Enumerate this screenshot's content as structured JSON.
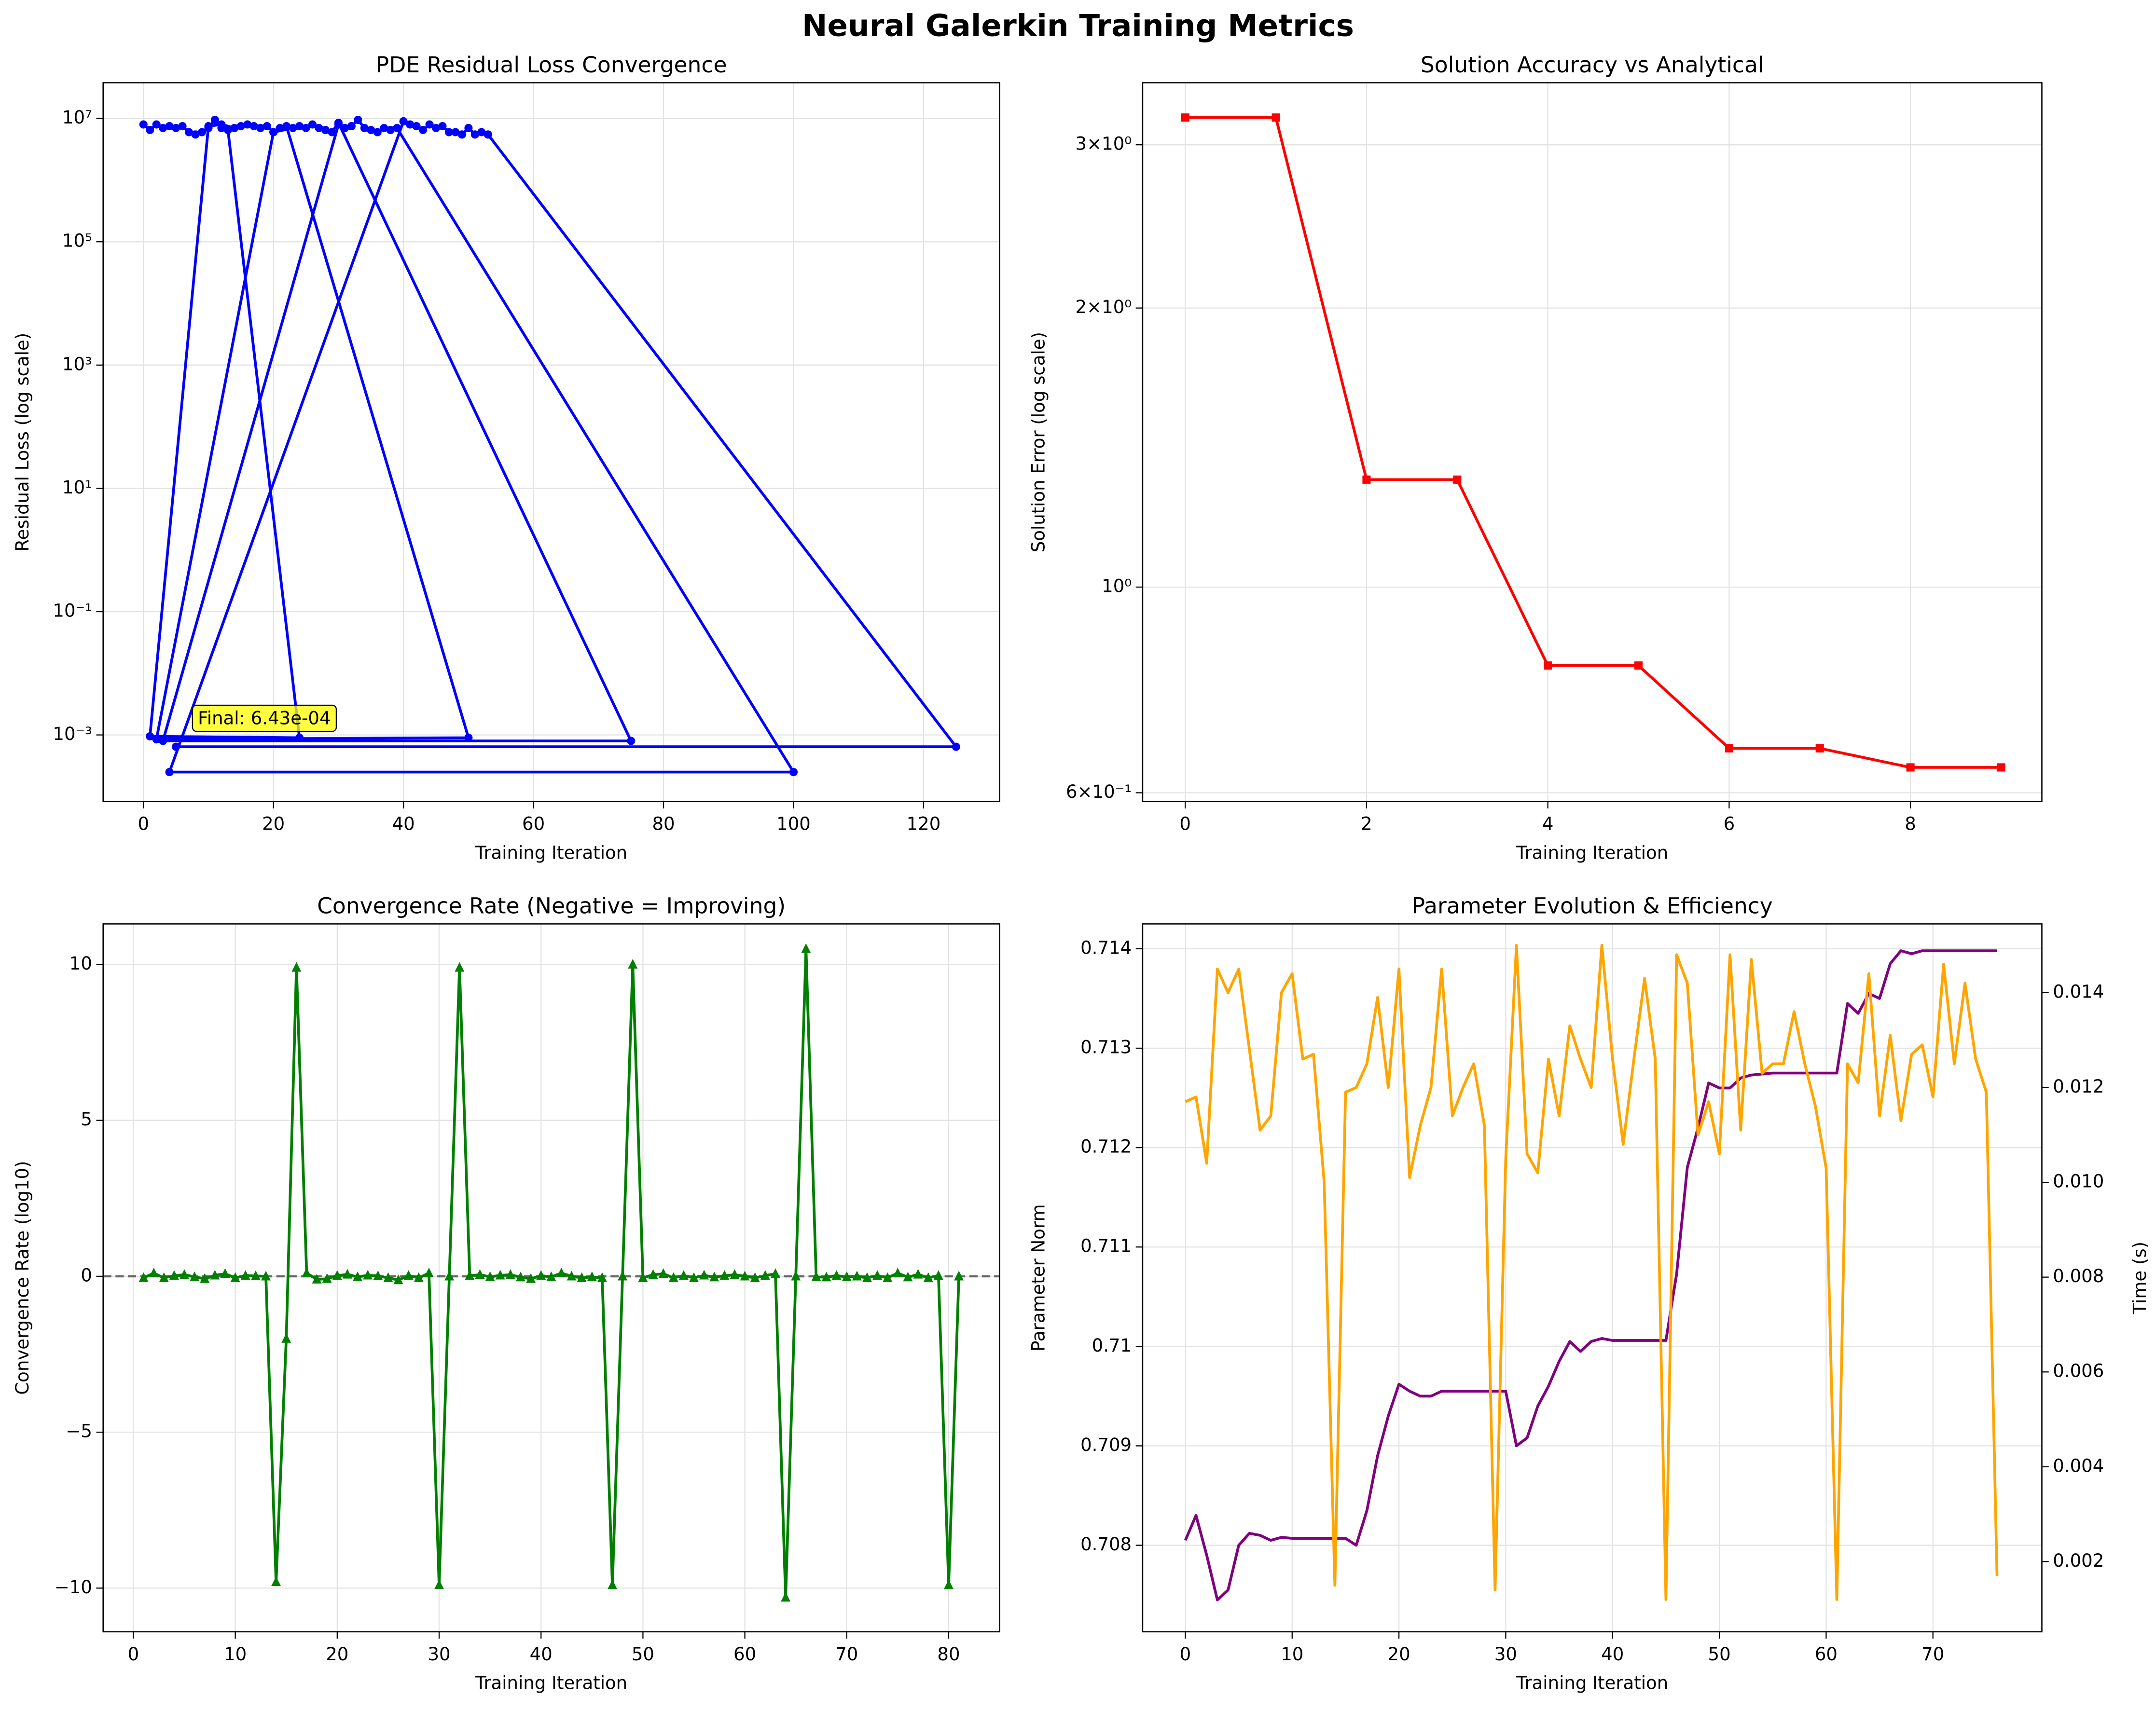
{
  "title": "Neural Galerkin Training Metrics",
  "chart_data": [
    {
      "type": "line",
      "title": "PDE Residual Loss Convergence",
      "xlabel": "Training Iteration",
      "ylabel": "Residual Loss (log scale)",
      "ylog": true,
      "grid": true,
      "xlim": [
        -6.2,
        131.7
      ],
      "xticks": [
        0,
        20,
        40,
        60,
        80,
        100,
        120
      ],
      "ylim": [
        8.3e-05,
        38000000.0
      ],
      "yticks": [
        {
          "value": 0.001,
          "label": "10⁻³"
        },
        {
          "value": 0.1,
          "label": "10⁻¹"
        },
        {
          "value": 10,
          "label": "10¹"
        },
        {
          "value": 1000,
          "label": "10³"
        },
        {
          "value": 100000,
          "label": "10⁵"
        },
        {
          "value": 10000000,
          "label": "10⁷"
        }
      ],
      "x": [
        0,
        1,
        2,
        3,
        4,
        5,
        6,
        7,
        8,
        9,
        10,
        11,
        12,
        13,
        24,
        1,
        10,
        12,
        14,
        15,
        16,
        17,
        18,
        19,
        20,
        21,
        22,
        50,
        2,
        20,
        23,
        24,
        25,
        26,
        27,
        28,
        29,
        30,
        75,
        3,
        30,
        31,
        32,
        33,
        34,
        35,
        36,
        37,
        38,
        39,
        100,
        4,
        40,
        41,
        42,
        43,
        44,
        45,
        46,
        47,
        48,
        49,
        50,
        51,
        52,
        53,
        125,
        5
      ],
      "series": [
        {
          "color": "#0000ff",
          "marker": "o",
          "values": [
            8000000.0,
            6500000.0,
            8000000.0,
            7000000.0,
            7500000.0,
            7000000.0,
            7500000.0,
            6000000.0,
            5500000.0,
            6000000.0,
            7000000.0,
            9500000.0,
            7000000.0,
            6500000.0,
            0.0009,
            0.00095,
            7500000.0,
            8000000.0,
            7000000.0,
            7500000.0,
            8000000.0,
            7500000.0,
            7000000.0,
            7500000.0,
            6000000.0,
            7000000.0,
            7500000.0,
            0.0009,
            0.00085,
            6000000.0,
            7000000.0,
            7500000.0,
            7000000.0,
            8000000.0,
            7000000.0,
            6500000.0,
            6000000.0,
            8500000.0,
            0.0008,
            0.0008,
            8000000.0,
            7000000.0,
            7500000.0,
            9500000.0,
            7000000.0,
            6500000.0,
            6000000.0,
            7000000.0,
            6500000.0,
            7000000.0,
            0.00025,
            0.00025,
            9000000.0,
            8000000.0,
            7500000.0,
            6500000.0,
            8000000.0,
            7000000.0,
            7500000.0,
            6000000.0,
            6000000.0,
            5500000.0,
            7000000.0,
            5500000.0,
            6000000.0,
            5500000.0,
            0.000643,
            0.000643
          ]
        }
      ],
      "annotation": "Final: 6.43e-04"
    },
    {
      "type": "line",
      "title": "Solution Accuracy vs Analytical",
      "xlabel": "Training Iteration",
      "ylabel": "Solution Error (log scale)",
      "ylog": true,
      "grid": true,
      "xlim": [
        -0.47,
        9.45
      ],
      "xticks": [
        0,
        2,
        4,
        6,
        8
      ],
      "ylim": [
        0.587,
        3.5
      ],
      "yticks": [
        {
          "value": 0.6,
          "label": "6×10⁻¹"
        },
        {
          "value": 1,
          "label": "10⁰"
        },
        {
          "value": 2,
          "label": "2×10⁰"
        },
        {
          "value": 3,
          "label": "3×10⁰"
        }
      ],
      "x": [
        0,
        1,
        2,
        3,
        4,
        5,
        6,
        7,
        8,
        9
      ],
      "series": [
        {
          "color": "#ff0000",
          "marker": "s",
          "values": [
            3.21,
            3.21,
            1.306,
            1.306,
            0.823,
            0.823,
            0.67,
            0.67,
            0.639,
            0.639
          ]
        }
      ]
    },
    {
      "type": "line",
      "title": "Convergence Rate (Negative = Improving)",
      "xlabel": "Training Iteration",
      "ylabel": "Convergence Rate (log10)",
      "grid": true,
      "hline": 0,
      "xlim": [
        -2.97,
        85
      ],
      "xticks": [
        0,
        10,
        20,
        30,
        40,
        50,
        60,
        70,
        80
      ],
      "ylim": [
        -11.4,
        11.3
      ],
      "yticks": [
        {
          "value": -10,
          "label": "−10"
        },
        {
          "value": -5,
          "label": "−5"
        },
        0,
        5,
        10
      ],
      "x": [
        1,
        2,
        3,
        4,
        5,
        6,
        7,
        8,
        9,
        10,
        11,
        12,
        13,
        14,
        15,
        16,
        17,
        18,
        19,
        20,
        21,
        22,
        23,
        24,
        25,
        26,
        27,
        28,
        29,
        30,
        31,
        32,
        33,
        34,
        35,
        36,
        37,
        38,
        39,
        40,
        41,
        42,
        43,
        44,
        45,
        46,
        47,
        48,
        49,
        50,
        51,
        52,
        53,
        54,
        55,
        56,
        57,
        58,
        59,
        60,
        61,
        62,
        63,
        64,
        65,
        66,
        67,
        68,
        69,
        70,
        71,
        72,
        73,
        74,
        75,
        76,
        77,
        78,
        79,
        80,
        81
      ],
      "series": [
        {
          "color": "#008000",
          "marker": "^",
          "values": [
            -0.05,
            0.1,
            -0.05,
            0.02,
            0.05,
            -0.02,
            -0.08,
            0.03,
            0.08,
            -0.05,
            0.02,
            0.01,
            0,
            -9.8,
            -2,
            9.9,
            0.1,
            -0.1,
            -0.08,
            0.02,
            0.06,
            -0.02,
            0.03,
            0.01,
            -0.05,
            -0.12,
            0.02,
            -0.05,
            0.1,
            -9.9,
            0,
            9.9,
            0.02,
            0.05,
            -0.02,
            0.03,
            0.05,
            -0.03,
            -0.08,
            0.02,
            -0.02,
            0.1,
            0,
            -0.05,
            -0.02,
            -0.05,
            -9.9,
            0,
            10,
            -0.05,
            0.05,
            0.08,
            -0.05,
            0.02,
            -0.05,
            0.03,
            -0.03,
            0.02,
            0.05,
            0,
            -0.05,
            0.02,
            0.08,
            -10.3,
            0,
            10.5,
            -0.02,
            -0.03,
            0.02,
            -0.02,
            0,
            -0.05,
            0.02,
            -0.05,
            0.1,
            -0.03,
            0.06,
            -0.05,
            0.02,
            -9.9,
            0
          ]
        }
      ]
    },
    {
      "type": "line",
      "title": "Parameter Evolution & Efficiency",
      "xlabel": "Training Iteration",
      "ylabel": "Parameter Norm",
      "y2label": "Time (s)",
      "grid": true,
      "xlim": [
        -4.0,
        80.2
      ],
      "xticks": [
        0,
        10,
        20,
        30,
        40,
        50,
        60,
        70
      ],
      "ylim": [
        0.70713,
        0.71425
      ],
      "yticks": [
        0.708,
        0.709,
        0.71,
        0.711,
        0.712,
        0.713,
        0.714
      ],
      "y2lim": [
        0.00052,
        0.01545
      ],
      "y2ticks": [
        0.002,
        0.004,
        0.006,
        0.008,
        {
          "value": 0.01,
          "label": "0.010"
        },
        0.012,
        0.014
      ],
      "x": [
        0,
        1,
        2,
        3,
        4,
        5,
        6,
        7,
        8,
        9,
        10,
        11,
        12,
        13,
        14,
        15,
        16,
        17,
        18,
        19,
        20,
        21,
        22,
        23,
        24,
        25,
        26,
        27,
        28,
        29,
        30,
        31,
        32,
        33,
        34,
        35,
        36,
        37,
        38,
        39,
        40,
        41,
        42,
        43,
        44,
        45,
        46,
        47,
        48,
        49,
        50,
        51,
        52,
        53,
        54,
        55,
        56,
        57,
        58,
        59,
        60,
        61,
        62,
        63,
        64,
        65,
        66,
        67,
        68,
        69,
        70,
        71,
        72,
        73,
        74,
        75,
        76
      ],
      "series": [
        {
          "color": "#800080",
          "values": [
            0.70805,
            0.7083,
            0.7079,
            0.70745,
            0.70755,
            0.708,
            0.70812,
            0.7081,
            0.70805,
            0.70808,
            0.70807,
            0.70807,
            0.70807,
            0.70807,
            0.70807,
            0.70807,
            0.708,
            0.70835,
            0.7089,
            0.7093,
            0.70962,
            0.70955,
            0.7095,
            0.7095,
            0.70955,
            0.70955,
            0.70955,
            0.70955,
            0.70955,
            0.70955,
            0.70955,
            0.709,
            0.70908,
            0.7094,
            0.7096,
            0.70985,
            0.71005,
            0.70995,
            0.71005,
            0.71008,
            0.71006,
            0.71006,
            0.71006,
            0.71006,
            0.71006,
            0.71006,
            0.71073,
            0.7118,
            0.7122,
            0.71265,
            0.7126,
            0.7126,
            0.7127,
            0.71273,
            0.71274,
            0.71275,
            0.71275,
            0.71275,
            0.71275,
            0.71275,
            0.71275,
            0.71275,
            0.71345,
            0.71335,
            0.71355,
            0.7135,
            0.71385,
            0.71398,
            0.71395,
            0.71398,
            0.71398,
            0.71398,
            0.71398,
            0.71398,
            0.71398,
            0.71398,
            0.71398
          ]
        },
        {
          "color": "#ffa500",
          "axis": "y2",
          "values": [
            0.0117,
            0.0118,
            0.0104,
            0.0145,
            0.014,
            0.0145,
            0.0128,
            0.0111,
            0.0114,
            0.014,
            0.0144,
            0.0126,
            0.0127,
            0.01,
            0.0015,
            0.0119,
            0.012,
            0.0125,
            0.0139,
            0.012,
            0.0145,
            0.0101,
            0.0112,
            0.012,
            0.0145,
            0.0114,
            0.012,
            0.0125,
            0.0112,
            0.0014,
            0.0105,
            0.015,
            0.0106,
            0.0102,
            0.0126,
            0.0114,
            0.0133,
            0.0126,
            0.012,
            0.015,
            0.0126,
            0.0108,
            0.0126,
            0.0143,
            0.0126,
            0.0012,
            0.0148,
            0.0142,
            0.011,
            0.0117,
            0.0106,
            0.0148,
            0.0111,
            0.0147,
            0.0123,
            0.0125,
            0.0125,
            0.0136,
            0.0125,
            0.0116,
            0.0103,
            0.0012,
            0.0125,
            0.0121,
            0.0144,
            0.0114,
            0.0131,
            0.0113,
            0.0127,
            0.0129,
            0.0118,
            0.0146,
            0.0125,
            0.0142,
            0.0126,
            0.0119,
            0.0017
          ]
        }
      ]
    }
  ]
}
